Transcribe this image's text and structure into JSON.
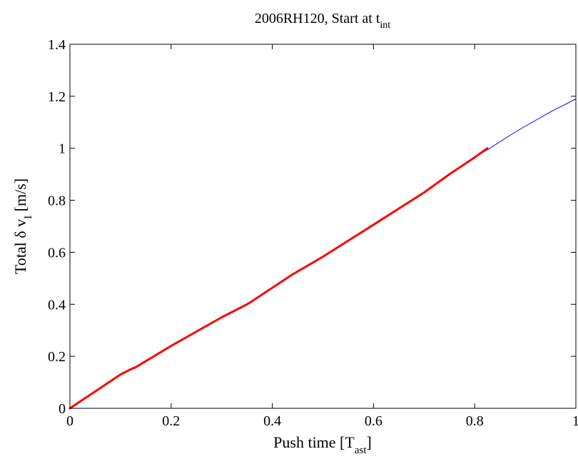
{
  "chart_data": {
    "type": "line",
    "title": {
      "main": "2006RH120, Start at t",
      "sub": "int"
    },
    "xlabel": {
      "main": "Push time [T",
      "sub": "ast",
      "tail": "]"
    },
    "ylabel": {
      "main": "Total δ v",
      "sub": "I",
      "tail": " [m/s]"
    },
    "xlim": [
      0,
      1
    ],
    "ylim": [
      0,
      1.4
    ],
    "xticks": [
      0,
      0.2,
      0.4,
      0.6,
      0.8,
      1
    ],
    "xtick_labels": [
      "0",
      "0.2",
      "0.4",
      "0.6",
      "0.8",
      "1"
    ],
    "yticks": [
      0,
      0.2,
      0.4,
      0.6,
      0.8,
      1,
      1.2,
      1.4
    ],
    "ytick_labels": [
      "0",
      "0.2",
      "0.4",
      "0.6",
      "0.8",
      "1",
      "1.2",
      "1.4"
    ],
    "grid": false,
    "legend": "none",
    "series": [
      {
        "color": "#0000ff",
        "linewidth": "thin",
        "x": [
          0,
          0.05,
          0.1,
          0.12,
          0.13,
          0.2,
          0.3,
          0.35,
          0.36,
          0.44,
          0.5,
          0.6,
          0.7,
          0.75,
          0.8,
          0.83,
          0.87,
          0.9,
          0.95,
          0.98,
          1.0
        ],
        "y": [
          0,
          0.065,
          0.13,
          0.15,
          0.158,
          0.24,
          0.35,
          0.4,
          0.412,
          0.515,
          0.583,
          0.706,
          0.83,
          0.9,
          0.965,
          1.0,
          1.05,
          1.085,
          1.14,
          1.17,
          1.19
        ]
      },
      {
        "color": "#ff0000",
        "linewidth": "thick",
        "x": [
          0,
          0.05,
          0.1,
          0.12,
          0.13,
          0.2,
          0.3,
          0.35,
          0.36,
          0.44,
          0.5,
          0.6,
          0.7,
          0.75,
          0.8,
          0.825
        ],
        "y": [
          0,
          0.065,
          0.13,
          0.15,
          0.158,
          0.24,
          0.35,
          0.4,
          0.412,
          0.515,
          0.583,
          0.706,
          0.83,
          0.9,
          0.965,
          1.0
        ]
      }
    ]
  }
}
